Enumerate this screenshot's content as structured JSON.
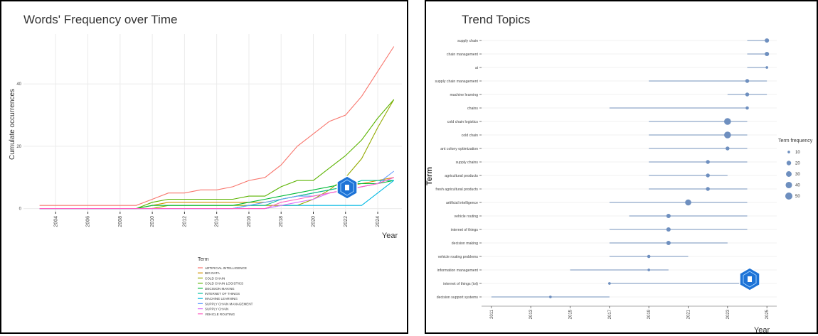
{
  "chart_data": [
    {
      "type": "line",
      "title": "Words' Frequency over Time",
      "xlabel": "Year",
      "ylabel": "Cumulate occurrences",
      "xlim": [
        2002,
        2025.5
      ],
      "ylim": [
        -1,
        56
      ],
      "x_ticks": [
        2004,
        2006,
        2008,
        2010,
        2012,
        2014,
        2016,
        2018,
        2020,
        2022,
        2024
      ],
      "y_ticks": [
        0,
        20,
        40
      ],
      "grid": true,
      "legend_title": "Term",
      "legend_placement": "bottom",
      "years": [
        2003,
        2004,
        2005,
        2006,
        2007,
        2008,
        2009,
        2010,
        2011,
        2012,
        2013,
        2014,
        2015,
        2016,
        2017,
        2018,
        2019,
        2020,
        2021,
        2022,
        2023,
        2024,
        2025
      ],
      "series": [
        {
          "name": "ARTIFICIAL INTELLIGENCE",
          "color": "#F8766D",
          "values": [
            1,
            1,
            1,
            1,
            1,
            1,
            1,
            3,
            5,
            5,
            6,
            6,
            7,
            9,
            10,
            14,
            20,
            24,
            28,
            30,
            36,
            44,
            52
          ]
        },
        {
          "name": "BIG DATA",
          "color": "#D39200",
          "values": [
            0,
            0,
            0,
            0,
            0,
            0,
            0,
            1,
            2,
            2,
            2,
            2,
            2,
            2,
            2,
            3,
            4,
            5,
            6,
            7,
            8,
            9,
            10
          ]
        },
        {
          "name": "COLD CHAIN",
          "color": "#93AA00",
          "values": [
            0,
            0,
            0,
            0,
            0,
            0,
            0,
            0,
            1,
            1,
            1,
            1,
            1,
            1,
            1,
            1,
            1,
            3,
            6,
            10,
            16,
            26,
            35
          ]
        },
        {
          "name": "COLD CHAIN LOGISTICS",
          "color": "#5BB300",
          "values": [
            0,
            0,
            0,
            0,
            0,
            0,
            0,
            2,
            3,
            3,
            3,
            3,
            3,
            4,
            4,
            7,
            9,
            9,
            13,
            17,
            22,
            29,
            35
          ]
        },
        {
          "name": "DECISION MAKING",
          "color": "#00BA38",
          "values": [
            0,
            0,
            0,
            0,
            0,
            0,
            0,
            1,
            1,
            1,
            1,
            1,
            1,
            2,
            3,
            4,
            5,
            6,
            7,
            8,
            8,
            8,
            9
          ]
        },
        {
          "name": "INTERNET OF THINGS",
          "color": "#00C19F",
          "values": [
            0,
            0,
            0,
            0,
            0,
            0,
            0,
            0,
            0,
            0,
            0,
            0,
            0,
            1,
            1,
            3,
            4,
            5,
            6,
            7,
            9,
            9,
            9
          ]
        },
        {
          "name": "MACHINE LEARNING",
          "color": "#00B9E3",
          "values": [
            0,
            0,
            0,
            0,
            0,
            0,
            0,
            0,
            0,
            0,
            0,
            0,
            0,
            0,
            0,
            1,
            1,
            1,
            1,
            1,
            1,
            5,
            9
          ]
        },
        {
          "name": "SUPPLY CHAIN MANAGEMENT",
          "color": "#619CFF",
          "values": [
            0,
            0,
            0,
            0,
            0,
            0,
            0,
            0,
            0,
            0,
            0,
            0,
            0,
            1,
            2,
            3,
            4,
            4,
            5,
            6,
            7,
            8,
            12
          ]
        },
        {
          "name": "SUPPLY CHAIN",
          "color": "#DB72FB",
          "values": [
            0,
            0,
            0,
            0,
            0,
            0,
            0,
            0,
            0,
            0,
            0,
            0,
            0,
            0,
            0,
            1,
            2,
            3,
            5,
            6,
            7,
            8,
            10
          ]
        },
        {
          "name": "VEHICLE ROUTING",
          "color": "#FF61C3",
          "values": [
            0,
            0,
            0,
            0,
            0,
            0,
            0,
            0,
            0,
            0,
            0,
            0,
            0,
            0,
            0,
            2,
            3,
            4,
            5,
            6,
            7,
            8,
            10
          ]
        }
      ]
    },
    {
      "type": "scatter",
      "title": "Trend Topics",
      "xlabel": "Year",
      "ylabel": "Term",
      "xlim": [
        2010.5,
        2025.5
      ],
      "x_ticks": [
        2011,
        2013,
        2015,
        2017,
        2019,
        2021,
        2023,
        2025
      ],
      "legend_title": "Term frequency",
      "legend_placement": "right",
      "legend_values": [
        10,
        20,
        30,
        40,
        50
      ],
      "point_color": "#6E8FBF",
      "line_color": "#AFC0D8",
      "terms": [
        {
          "term": "supply chain",
          "q1": 2024,
          "median": 2025,
          "q3": 2025,
          "freq": 18
        },
        {
          "term": "chain management",
          "q1": 2024,
          "median": 2025,
          "q3": 2025,
          "freq": 18
        },
        {
          "term": "ai",
          "q1": 2024,
          "median": 2025,
          "q3": 2025,
          "freq": 10
        },
        {
          "term": "supply chain management",
          "q1": 2019,
          "median": 2024,
          "q3": 2025,
          "freq": 15
        },
        {
          "term": "machine learning",
          "q1": 2023,
          "median": 2024,
          "q3": 2025,
          "freq": 15
        },
        {
          "term": "chains",
          "q1": 2017,
          "median": 2024,
          "q3": 2024,
          "freq": 12
        },
        {
          "term": "cold chain logistics",
          "q1": 2019,
          "median": 2023,
          "q3": 2024,
          "freq": 45
        },
        {
          "term": "cold chain",
          "q1": 2019,
          "median": 2023,
          "q3": 2024,
          "freq": 45
        },
        {
          "term": "ant colony optimization",
          "q1": 2019,
          "median": 2023,
          "q3": 2024,
          "freq": 15
        },
        {
          "term": "supply chains",
          "q1": 2019,
          "median": 2022,
          "q3": 2024,
          "freq": 15
        },
        {
          "term": "agricultural products",
          "q1": 2019,
          "median": 2022,
          "q3": 2023,
          "freq": 15
        },
        {
          "term": "fresh agricultural products",
          "q1": 2019,
          "median": 2022,
          "q3": 2024,
          "freq": 15
        },
        {
          "term": "artificial intelligence",
          "q1": 2017,
          "median": 2021,
          "q3": 2024,
          "freq": 35
        },
        {
          "term": "vehicle routing",
          "q1": 2018,
          "median": 2020,
          "q3": 2024,
          "freq": 18
        },
        {
          "term": "internet of things",
          "q1": 2017,
          "median": 2020,
          "q3": 2024,
          "freq": 18
        },
        {
          "term": "decision making",
          "q1": 2017,
          "median": 2020,
          "q3": 2023,
          "freq": 18
        },
        {
          "term": "vehicle routing problems",
          "q1": 2017,
          "median": 2019,
          "q3": 2021,
          "freq": 12
        },
        {
          "term": "information management",
          "q1": 2015,
          "median": 2019,
          "q3": 2020,
          "freq": 10
        },
        {
          "term": "internet of things (iot)",
          "q1": 2017,
          "median": 2017,
          "q3": 2024,
          "freq": 10
        },
        {
          "term": "decision support systems",
          "q1": 2011,
          "median": 2014,
          "q3": 2017,
          "freq": 10
        }
      ]
    }
  ],
  "colors": {
    "panel_border": "#000000",
    "grid": "#EBEBEB",
    "logo": "#1E73D6"
  },
  "icons": {
    "watermark": "hexagon-logo-icon"
  }
}
